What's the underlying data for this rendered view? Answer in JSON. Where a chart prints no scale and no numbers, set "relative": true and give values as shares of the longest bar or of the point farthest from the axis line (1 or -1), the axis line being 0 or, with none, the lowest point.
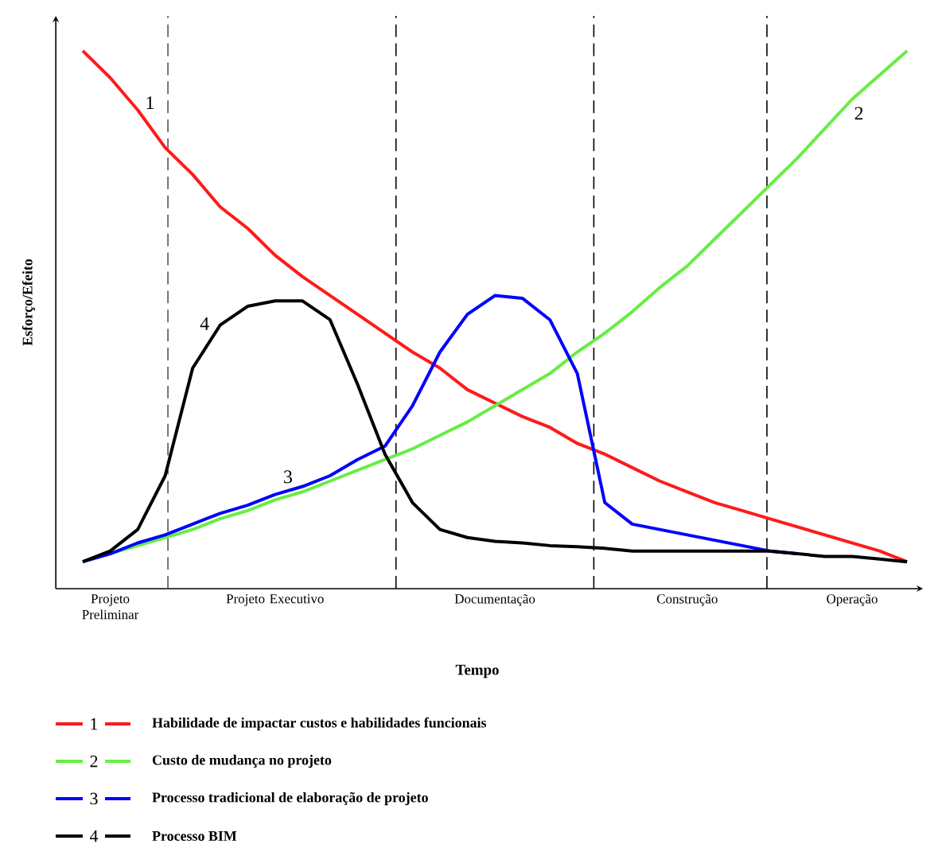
{
  "chart_data": {
    "type": "line",
    "relative": true,
    "xlabel": "Tempo",
    "ylabel": "Esforço/Efeito",
    "tick_labels": "x",
    "legend": "bottom",
    "categories": [
      null,
      "Projeto Preliminar",
      null,
      null,
      null,
      null,
      null,
      "Projeto Executivo",
      null,
      null,
      null,
      null,
      null,
      null,
      null,
      "Documentação",
      null,
      null,
      null,
      null,
      null,
      null,
      "Construção",
      null,
      null,
      null,
      null,
      null,
      "Operação",
      null,
      null
    ],
    "series": [
      {
        "name": "Habilidade de impactar custos e habilidades funcionais",
        "color": "#ff1a1a",
        "values": [
          1.0,
          0.95,
          0.89,
          0.82,
          0.77,
          0.71,
          0.67,
          0.62,
          0.58,
          0.545,
          0.51,
          0.475,
          0.44,
          0.41,
          0.37,
          0.345,
          0.32,
          0.3,
          0.27,
          0.25,
          0.225,
          0.2,
          0.18,
          0.16,
          0.145,
          0.13,
          0.115,
          0.1,
          0.085,
          0.07,
          0.05
        ]
      },
      {
        "name": "Custo de mudança no projeto",
        "color": "#66ee44",
        "values": [
          0.05,
          0.065,
          0.08,
          0.095,
          0.11,
          0.13,
          0.145,
          0.165,
          0.18,
          0.2,
          0.22,
          0.24,
          0.26,
          0.285,
          0.31,
          0.34,
          0.37,
          0.4,
          0.44,
          0.475,
          0.515,
          0.56,
          0.6,
          0.65,
          0.7,
          0.75,
          0.8,
          0.855,
          0.91,
          0.955,
          1.0
        ]
      },
      {
        "name": "Processo tradicional de elaboração de projeto",
        "color": "#0000ff",
        "values": [
          0.05,
          0.065,
          0.085,
          0.1,
          0.12,
          0.14,
          0.155,
          0.175,
          0.19,
          0.21,
          0.24,
          0.265,
          0.34,
          0.44,
          0.51,
          0.545,
          0.54,
          0.5,
          0.4,
          0.16,
          0.12,
          0.11,
          0.1,
          0.09,
          0.08,
          0.07,
          0.065,
          null,
          null,
          null,
          null
        ]
      },
      {
        "name": "Processo BIM",
        "color": "#000000",
        "values": [
          0.05,
          0.07,
          0.11,
          0.21,
          0.41,
          0.49,
          0.525,
          0.535,
          0.535,
          0.5,
          0.38,
          0.25,
          0.16,
          0.11,
          0.095,
          0.088,
          0.085,
          0.08,
          0.078,
          0.075,
          0.07,
          0.07,
          0.07,
          0.07,
          0.07,
          0.07,
          0.065,
          0.06,
          0.06,
          0.055,
          0.05
        ]
      }
    ],
    "annotations": [
      "1",
      "2",
      "3",
      "4"
    ]
  }
}
